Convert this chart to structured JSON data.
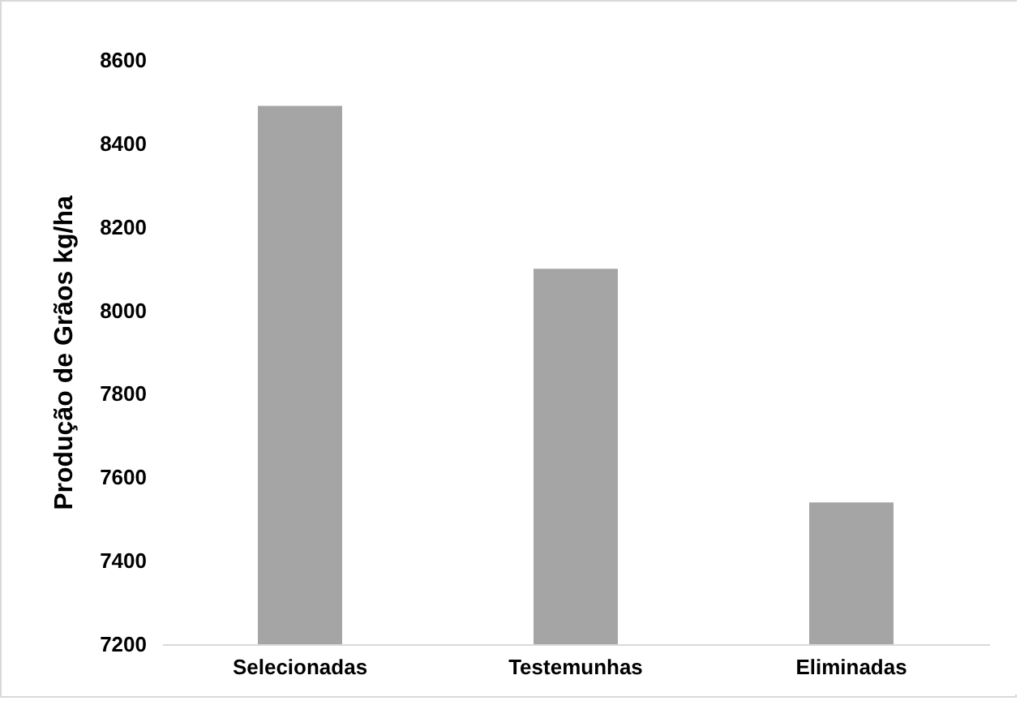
{
  "chart_data": {
    "type": "bar",
    "ylabel": "Produção de Grãos kg/ha",
    "categories": [
      "Selecionadas",
      "Testemunhas",
      "Eliminadas"
    ],
    "values": [
      8490,
      8100,
      7540
    ],
    "color": "#a5a5a5",
    "ylim": [
      7200,
      8600
    ],
    "yticks": [
      7200,
      7400,
      7600,
      7800,
      8000,
      8200,
      8400,
      8600
    ],
    "grid": false
  }
}
